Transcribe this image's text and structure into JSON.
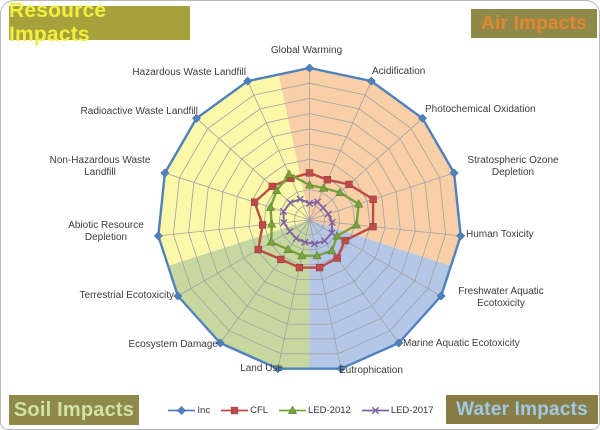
{
  "corner_labels": {
    "resource": {
      "label": "Resource Impacts",
      "bg": "#a5a23b",
      "fg": "#f2ee3f"
    },
    "air": {
      "label": "Air Impacts",
      "bg": "#8f8a49",
      "fg": "#e6862f"
    },
    "soil": {
      "label": "Soil Impacts",
      "bg": "#8f8a49",
      "fg": "#cee3a4"
    },
    "water": {
      "label": "Water Impacts",
      "bg": "#897d46",
      "fg": "#9fc9e7"
    }
  },
  "chart_data": {
    "type": "radar",
    "axes": [
      "Global Warming",
      "Acidification",
      "Photochemical Oxidation",
      "Stratospheric Ozone Depletion",
      "Human Toxicity",
      "Freshwater Aquatic Ecotoxicity",
      "Marine Aquatic Ecotoxicity",
      "Eutrophication",
      "Land Use",
      "Ecosystem Damage",
      "Terrestrial Ecotoxicity",
      "Abiotic Resource Depletion",
      "Non-Hazardous Waste Landfill",
      "Radioactive Waste Landfill",
      "Hazardous Waste Landfill"
    ],
    "rings": 10,
    "scale_max": 1.0,
    "grid_color": "#a0a1a5",
    "legend_position": "bottom",
    "series": [
      {
        "name": "Inc",
        "color": "#4f81bd",
        "marker": "diamond",
        "values": [
          1.0,
          1.0,
          1.0,
          1.0,
          1.0,
          1.0,
          1.0,
          1.0,
          1.0,
          1.0,
          1.0,
          1.0,
          1.0,
          1.0,
          1.0
        ]
      },
      {
        "name": "CFL",
        "color": "#be4b48",
        "marker": "square",
        "values": [
          0.31,
          0.29,
          0.35,
          0.44,
          0.42,
          0.27,
          0.31,
          0.32,
          0.32,
          0.32,
          0.39,
          0.31,
          0.38,
          0.33,
          0.3
        ]
      },
      {
        "name": "LED-2012",
        "color": "#77a23d",
        "marker": "triangle",
        "values": [
          0.23,
          0.23,
          0.27,
          0.34,
          0.31,
          0.21,
          0.25,
          0.24,
          0.24,
          0.24,
          0.29,
          0.25,
          0.27,
          0.29,
          0.33
        ]
      },
      {
        "name": "LED-2017",
        "color": "#8064a2",
        "marker": "xstar",
        "values": [
          0.11,
          0.13,
          0.12,
          0.13,
          0.15,
          0.17,
          0.17,
          0.16,
          0.15,
          0.15,
          0.15,
          0.17,
          0.18,
          0.17,
          0.15
        ]
      }
    ],
    "sectors": [
      {
        "name": "Air",
        "color": "#f8cfa7",
        "from": 0,
        "to": 4
      },
      {
        "name": "Water",
        "color": "#b4c7e7",
        "from": 5,
        "to": 7
      },
      {
        "name": "Soil",
        "color": "#c6d8a0",
        "from": 8,
        "to": 10
      },
      {
        "name": "Resource",
        "color": "#fcf8a9",
        "from": 11,
        "to": 14
      }
    ]
  }
}
